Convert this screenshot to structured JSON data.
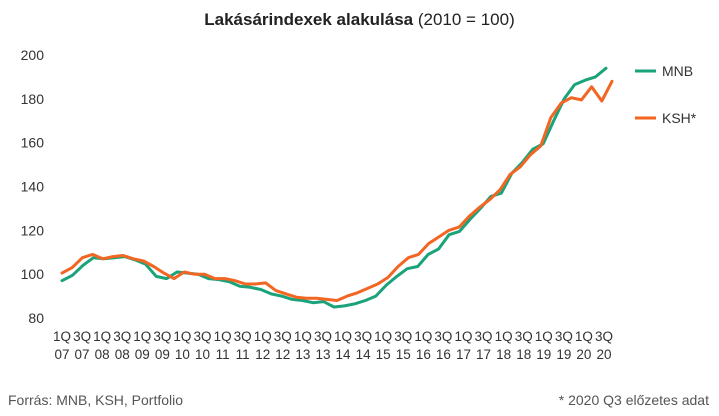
{
  "title": {
    "main": "Lakásárindexek alakulása",
    "sub": "(2010 = 100)"
  },
  "source": "Forrás: MNB, KSH, Portfolio",
  "footnote": "* 2020 Q3 előzetes adat",
  "chart_data": {
    "type": "line",
    "title": "Lakásárindexek alakulása (2010 = 100)",
    "ylim": [
      80,
      200
    ],
    "yticks": [
      80,
      100,
      120,
      140,
      160,
      180,
      200
    ],
    "grid": false,
    "legend_position": "right",
    "x_ticks": [
      {
        "q": "1Q",
        "y": "07"
      },
      {
        "q": "3Q",
        "y": "07"
      },
      {
        "q": "1Q",
        "y": "08"
      },
      {
        "q": "3Q",
        "y": "08"
      },
      {
        "q": "1Q",
        "y": "09"
      },
      {
        "q": "3Q",
        "y": "09"
      },
      {
        "q": "1Q",
        "y": "10"
      },
      {
        "q": "3Q",
        "y": "10"
      },
      {
        "q": "1Q",
        "y": "11"
      },
      {
        "q": "3Q",
        "y": "11"
      },
      {
        "q": "1Q",
        "y": "12"
      },
      {
        "q": "3Q",
        "y": "12"
      },
      {
        "q": "1Q",
        "y": "13"
      },
      {
        "q": "3Q",
        "y": "13"
      },
      {
        "q": "1Q",
        "y": "14"
      },
      {
        "q": "3Q",
        "y": "14"
      },
      {
        "q": "1Q",
        "y": "15"
      },
      {
        "q": "3Q",
        "y": "15"
      },
      {
        "q": "1Q",
        "y": "16"
      },
      {
        "q": "3Q",
        "y": "16"
      },
      {
        "q": "1Q",
        "y": "17"
      },
      {
        "q": "3Q",
        "y": "17"
      },
      {
        "q": "1Q",
        "y": "18"
      },
      {
        "q": "3Q",
        "y": "18"
      },
      {
        "q": "1Q",
        "y": "19"
      },
      {
        "q": "3Q",
        "y": "19"
      },
      {
        "q": "1Q",
        "y": "20"
      },
      {
        "q": "3Q",
        "y": "20"
      }
    ],
    "series": [
      {
        "name": "MNB",
        "color": "#1aa37a",
        "values": [
          97,
          99.5,
          104,
          107.5,
          107,
          107.5,
          108,
          106.5,
          104.5,
          99,
          98,
          101,
          100.5,
          100,
          98,
          97.5,
          96.5,
          94.5,
          94,
          93,
          91,
          90,
          88.5,
          88,
          87,
          87.5,
          85,
          85.5,
          86.5,
          88,
          90,
          95,
          99,
          102.5,
          103.5,
          109,
          111.5,
          118,
          119.5,
          125,
          130,
          135.5,
          137,
          146,
          151,
          157,
          159.5,
          170,
          180,
          186.5,
          188.5,
          190,
          194
        ]
      },
      {
        "name": "KSH*",
        "color": "#f26522",
        "values": [
          100.5,
          103,
          107.5,
          109,
          107,
          108,
          108.5,
          107,
          106,
          103.5,
          100.5,
          98,
          101,
          100,
          100,
          98,
          98,
          97,
          95.5,
          95.5,
          96,
          92.5,
          91,
          89.5,
          89,
          89,
          88.5,
          88,
          90,
          91.5,
          93.5,
          95.5,
          98.5,
          103.5,
          107.5,
          109,
          114,
          117,
          120,
          121.5,
          126.5,
          130.5,
          134,
          138.5,
          145.5,
          149,
          154.5,
          158.5,
          171.5,
          178,
          180.5,
          179.5,
          185.5,
          179,
          188
        ]
      }
    ]
  }
}
